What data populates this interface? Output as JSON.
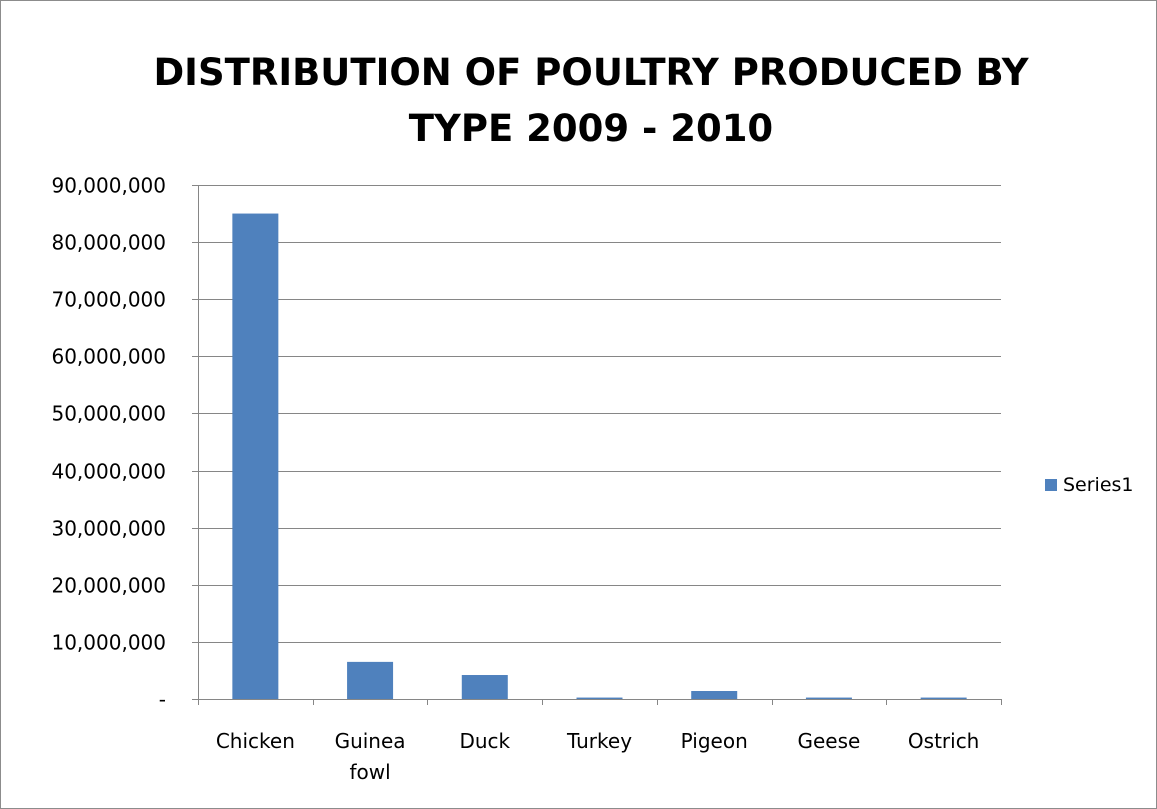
{
  "chart_data": {
    "type": "bar",
    "title_lines": [
      "DISTRIBUTION OF POULTRY PRODUCED BY",
      "TYPE 2009 - 2010"
    ],
    "categories": [
      [
        "Chicken"
      ],
      [
        "Guinea",
        "fowl"
      ],
      [
        "Duck"
      ],
      [
        "Turkey"
      ],
      [
        "Pigeon"
      ],
      [
        "Geese"
      ],
      [
        "Ostrich"
      ]
    ],
    "series": [
      {
        "name": "Series1",
        "color": "#4f81bd",
        "values": [
          85000000,
          6500000,
          4200000,
          250000,
          1400000,
          250000,
          250000
        ]
      }
    ],
    "ylim": [
      0,
      90000000
    ],
    "ytick_values": [
      0,
      10000000,
      20000000,
      30000000,
      40000000,
      50000000,
      60000000,
      70000000,
      80000000,
      90000000
    ],
    "ytick_labels": [
      "-",
      "10,000,000",
      "20,000,000",
      "30,000,000",
      "40,000,000",
      "50,000,000",
      "60,000,000",
      "70,000,000",
      "80,000,000",
      "90,000,000"
    ],
    "xlabel": "",
    "ylabel": "",
    "grid": true,
    "legend_position": "right",
    "gridline_color": "#868686"
  }
}
